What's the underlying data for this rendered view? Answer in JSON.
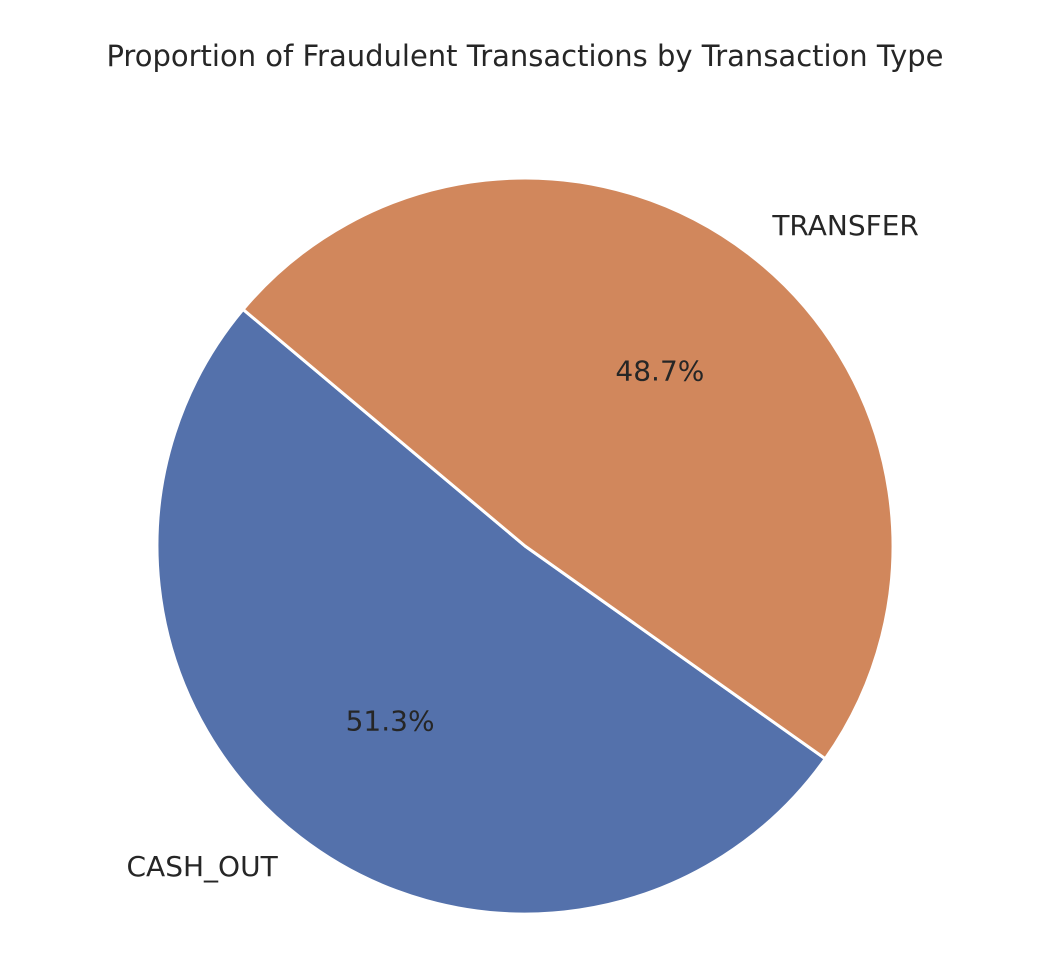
{
  "chart_data": {
    "type": "pie",
    "title": "Proportion of Fraudulent Transactions by Transaction Type",
    "categories": [
      "CASH_OUT",
      "TRANSFER"
    ],
    "values": [
      51.3,
      48.7
    ],
    "value_labels": [
      "51.3%",
      "48.7%"
    ],
    "colors": [
      "#5471ab",
      "#d1875c"
    ],
    "legend": false
  }
}
